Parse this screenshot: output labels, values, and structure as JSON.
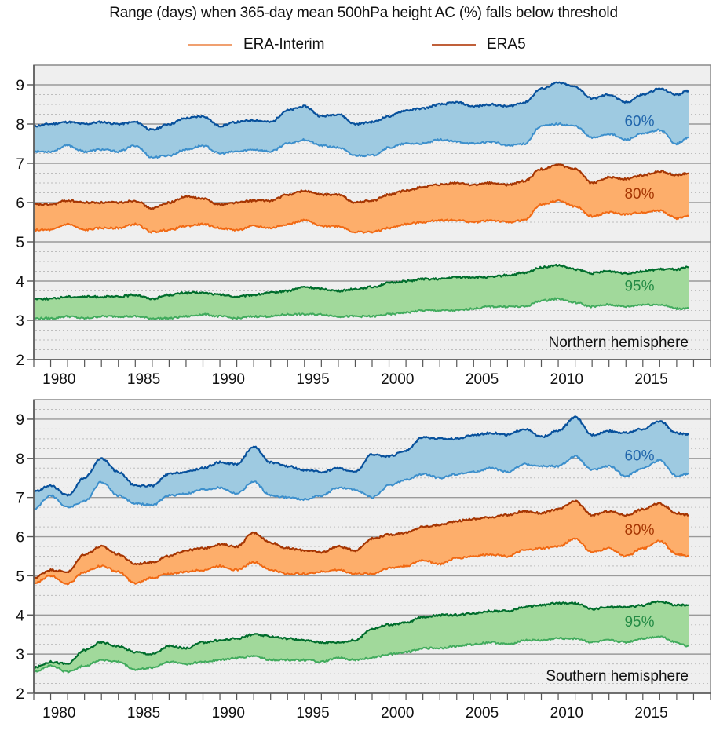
{
  "chart_data": {
    "type": "area",
    "title": "Range (days) when 365-day mean 500hPa height AC (%) falls below threshold",
    "legend": {
      "placement": "top-center",
      "entries": [
        {
          "name": "ERA-Interim",
          "color": "#f0a070"
        },
        {
          "name": "ERA5",
          "color": "#c0603a"
        }
      ]
    },
    "xlabel": "",
    "ylabel": "",
    "xlim": [
      1979,
      2019
    ],
    "ylim": [
      2,
      9.5
    ],
    "grid": true,
    "x_ticks": [
      1980,
      1985,
      1990,
      1995,
      2000,
      2005,
      2010,
      2015
    ],
    "y_ticks": [
      2,
      3,
      4,
      5,
      6,
      7,
      8,
      9
    ],
    "x": [
      1979,
      1980,
      1981,
      1982,
      1983,
      1984,
      1985,
      1986,
      1987,
      1988,
      1989,
      1990,
      1991,
      1992,
      1993,
      1994,
      1995,
      1996,
      1997,
      1998,
      1999,
      2000,
      2001,
      2002,
      2003,
      2004,
      2005,
      2006,
      2007,
      2008,
      2009,
      2010,
      2011,
      2012,
      2013,
      2014,
      2015,
      2016,
      2017,
      2017.7
    ],
    "panels": [
      {
        "name": "Northern hemisphere",
        "bands": [
          {
            "threshold": "60%",
            "fill": "#9ecae1",
            "era5_color": "#08519c",
            "erai_color": "#3c8fcc",
            "label_color": "#2166ac",
            "label_pos": [
              2014.8,
              7.95
            ],
            "ERA5": [
              7.95,
              8.0,
              8.05,
              8.0,
              8.05,
              8.0,
              8.05,
              7.85,
              8.0,
              8.15,
              8.2,
              7.95,
              8.05,
              8.1,
              8.05,
              8.35,
              8.45,
              8.2,
              8.25,
              8.0,
              8.05,
              8.2,
              8.35,
              8.4,
              8.5,
              8.55,
              8.45,
              8.5,
              8.45,
              8.55,
              8.9,
              9.05,
              8.95,
              8.65,
              8.75,
              8.55,
              8.75,
              8.9,
              8.75,
              8.85
            ],
            "ERA-Interim": [
              7.3,
              7.3,
              7.45,
              7.3,
              7.35,
              7.3,
              7.45,
              7.15,
              7.2,
              7.35,
              7.45,
              7.25,
              7.3,
              7.35,
              7.3,
              7.5,
              7.6,
              7.45,
              7.4,
              7.2,
              7.2,
              7.4,
              7.5,
              7.5,
              7.6,
              7.55,
              7.5,
              7.55,
              7.45,
              7.5,
              7.95,
              8.0,
              7.95,
              7.65,
              7.75,
              7.6,
              7.75,
              7.85,
              7.5,
              7.65
            ]
          },
          {
            "threshold": "80%",
            "fill": "#fdae6b",
            "era5_color": "#a63603",
            "erai_color": "#f16913",
            "label_color": "#a63603",
            "label_pos": [
              2014.8,
              6.1
            ],
            "ERA5": [
              5.95,
              5.95,
              6.05,
              6.0,
              6.0,
              6.0,
              6.05,
              5.85,
              6.0,
              6.15,
              6.1,
              5.95,
              6.0,
              6.05,
              6.05,
              6.2,
              6.3,
              6.2,
              6.2,
              6.0,
              6.05,
              6.2,
              6.3,
              6.4,
              6.45,
              6.5,
              6.45,
              6.5,
              6.45,
              6.55,
              6.85,
              6.95,
              6.85,
              6.5,
              6.65,
              6.6,
              6.7,
              6.8,
              6.7,
              6.75
            ],
            "ERA-Interim": [
              5.3,
              5.3,
              5.45,
              5.3,
              5.35,
              5.35,
              5.45,
              5.25,
              5.3,
              5.4,
              5.45,
              5.35,
              5.3,
              5.4,
              5.35,
              5.45,
              5.55,
              5.4,
              5.4,
              5.25,
              5.25,
              5.35,
              5.45,
              5.5,
              5.55,
              5.55,
              5.5,
              5.55,
              5.5,
              5.55,
              5.95,
              6.05,
              5.9,
              5.65,
              5.75,
              5.7,
              5.75,
              5.8,
              5.6,
              5.65
            ]
          },
          {
            "threshold": "95%",
            "fill": "#a1d99b",
            "era5_color": "#006d2c",
            "erai_color": "#41ab5d",
            "label_color": "#238b45",
            "label_pos": [
              2014.8,
              3.75
            ],
            "ERA5": [
              3.55,
              3.55,
              3.6,
              3.6,
              3.6,
              3.6,
              3.65,
              3.55,
              3.65,
              3.7,
              3.7,
              3.65,
              3.6,
              3.65,
              3.7,
              3.75,
              3.85,
              3.8,
              3.75,
              3.8,
              3.85,
              3.95,
              4.0,
              4.05,
              4.05,
              4.1,
              4.1,
              4.1,
              4.15,
              4.2,
              4.35,
              4.4,
              4.3,
              4.2,
              4.25,
              4.2,
              4.25,
              4.3,
              4.3,
              4.35
            ],
            "ERA-Interim": [
              3.05,
              3.05,
              3.1,
              3.05,
              3.1,
              3.1,
              3.1,
              3.05,
              3.05,
              3.1,
              3.15,
              3.1,
              3.05,
              3.1,
              3.1,
              3.15,
              3.15,
              3.15,
              3.1,
              3.1,
              3.1,
              3.15,
              3.2,
              3.25,
              3.25,
              3.25,
              3.3,
              3.35,
              3.35,
              3.35,
              3.5,
              3.55,
              3.45,
              3.35,
              3.4,
              3.35,
              3.4,
              3.4,
              3.3,
              3.3
            ]
          }
        ]
      },
      {
        "name": "Southern hemisphere",
        "bands": [
          {
            "threshold": "60%",
            "fill": "#9ecae1",
            "era5_color": "#08519c",
            "erai_color": "#3c8fcc",
            "label_color": "#2166ac",
            "label_pos": [
              2014.8,
              7.95
            ],
            "ERA5": [
              7.15,
              7.3,
              7.05,
              7.5,
              8.0,
              7.65,
              7.3,
              7.3,
              7.6,
              7.65,
              7.75,
              7.9,
              7.85,
              8.3,
              7.9,
              7.8,
              7.7,
              7.65,
              7.75,
              7.65,
              8.1,
              8.05,
              8.2,
              8.55,
              8.5,
              8.5,
              8.6,
              8.65,
              8.6,
              8.75,
              8.55,
              8.7,
              9.05,
              8.6,
              8.7,
              8.65,
              8.75,
              8.95,
              8.65,
              8.6
            ],
            "ERA-Interim": [
              6.7,
              7.05,
              6.75,
              6.9,
              7.4,
              7.05,
              6.85,
              6.8,
              7.05,
              7.1,
              7.2,
              7.25,
              7.1,
              7.4,
              7.05,
              7.0,
              6.95,
              7.05,
              7.25,
              7.2,
              7.0,
              7.3,
              7.45,
              7.6,
              7.5,
              7.6,
              7.65,
              7.75,
              7.65,
              7.85,
              7.8,
              7.8,
              8.05,
              7.7,
              7.8,
              7.55,
              7.75,
              7.95,
              7.55,
              7.6
            ]
          },
          {
            "threshold": "80%",
            "fill": "#fdae6b",
            "era5_color": "#a63603",
            "erai_color": "#f16913",
            "label_color": "#a63603",
            "label_pos": [
              2014.8,
              6.05
            ],
            "ERA5": [
              4.95,
              5.15,
              5.1,
              5.55,
              5.75,
              5.55,
              5.3,
              5.35,
              5.5,
              5.65,
              5.7,
              5.8,
              5.75,
              6.1,
              5.85,
              5.7,
              5.65,
              5.6,
              5.75,
              5.65,
              5.95,
              6.05,
              6.1,
              6.25,
              6.3,
              6.4,
              6.45,
              6.5,
              6.55,
              6.65,
              6.6,
              6.7,
              6.9,
              6.55,
              6.65,
              6.55,
              6.7,
              6.85,
              6.6,
              6.55
            ],
            "ERA-Interim": [
              4.8,
              5.0,
              4.8,
              5.1,
              5.25,
              5.1,
              4.8,
              4.95,
              5.05,
              5.1,
              5.15,
              5.25,
              5.15,
              5.35,
              5.15,
              5.05,
              5.05,
              5.1,
              5.15,
              5.05,
              5.05,
              5.2,
              5.25,
              5.4,
              5.3,
              5.45,
              5.5,
              5.55,
              5.5,
              5.65,
              5.7,
              5.75,
              5.95,
              5.6,
              5.7,
              5.5,
              5.7,
              5.9,
              5.55,
              5.5
            ]
          },
          {
            "threshold": "95%",
            "fill": "#a1d99b",
            "era5_color": "#006d2c",
            "erai_color": "#41ab5d",
            "label_color": "#238b45",
            "label_pos": [
              2014.8,
              3.7
            ],
            "ERA5": [
              2.65,
              2.8,
              2.75,
              3.1,
              3.3,
              3.2,
              3.05,
              3.0,
              3.2,
              3.15,
              3.3,
              3.35,
              3.4,
              3.5,
              3.45,
              3.4,
              3.35,
              3.3,
              3.3,
              3.35,
              3.65,
              3.75,
              3.8,
              3.95,
              4.0,
              4.0,
              4.05,
              4.1,
              4.1,
              4.2,
              4.25,
              4.3,
              4.3,
              4.15,
              4.2,
              4.2,
              4.25,
              4.35,
              4.25,
              4.25
            ],
            "ERA-Interim": [
              2.55,
              2.7,
              2.55,
              2.7,
              2.85,
              2.8,
              2.6,
              2.65,
              2.8,
              2.75,
              2.8,
              2.85,
              2.9,
              2.95,
              2.85,
              2.85,
              2.85,
              2.8,
              2.9,
              2.85,
              2.9,
              3.0,
              3.05,
              3.15,
              3.15,
              3.2,
              3.25,
              3.3,
              3.25,
              3.35,
              3.35,
              3.4,
              3.4,
              3.3,
              3.35,
              3.3,
              3.4,
              3.45,
              3.3,
              3.2
            ]
          }
        ]
      }
    ]
  },
  "grid_colors": {
    "panel_bg": "#efefef",
    "major": "#9a9a9a",
    "minor": "#bdbdbd",
    "frame": "#8a8a8a"
  }
}
